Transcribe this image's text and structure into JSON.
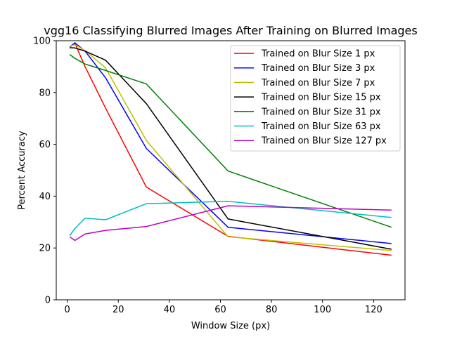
{
  "chart_data": {
    "type": "line",
    "title": "vgg16 Classifying Blurred Images After Training on Blurred Images",
    "xlabel": "Window Size (px)",
    "ylabel": "Percent Accuracy",
    "xlim": [
      -4.3,
      132.3
    ],
    "ylim": [
      0,
      100
    ],
    "xticks": [
      0,
      20,
      40,
      60,
      80,
      100,
      120
    ],
    "yticks": [
      0,
      20,
      40,
      60,
      80,
      100
    ],
    "grid": false,
    "legend_position": "upper right",
    "x": [
      1,
      3,
      7,
      15,
      31,
      63,
      127
    ],
    "series": [
      {
        "name": "Trained on Blur Size 1 px",
        "color": "#ff0000",
        "values": [
          97.5,
          99.0,
          90.0,
          74.0,
          43.5,
          24.5,
          17.2
        ]
      },
      {
        "name": "Trained on Blur Size 3 px",
        "color": "#0000ff",
        "values": [
          97.6,
          99.2,
          96.0,
          85.7,
          58.4,
          28.0,
          21.7
        ]
      },
      {
        "name": "Trained on Blur Size 7 px",
        "color": "#bfbf00",
        "values": [
          97.8,
          98.5,
          96.2,
          89.5,
          61.5,
          24.3,
          19.0
        ]
      },
      {
        "name": "Trained on Blur Size 15 px",
        "color": "#000000",
        "values": [
          97.3,
          97.2,
          96.0,
          92.5,
          75.7,
          31.2,
          19.5
        ]
      },
      {
        "name": "Trained on Blur Size 31 px",
        "color": "#008000",
        "values": [
          94.7,
          93.2,
          91.0,
          88.5,
          83.3,
          49.7,
          28.0
        ]
      },
      {
        "name": "Trained on Blur Size 63 px",
        "color": "#00bfbf",
        "values": [
          24.8,
          27.5,
          31.5,
          30.9,
          37.1,
          38.0,
          31.8
        ]
      },
      {
        "name": "Trained on Blur Size 127 px",
        "color": "#bf00bf",
        "values": [
          24.3,
          22.9,
          25.4,
          26.8,
          28.3,
          36.3,
          34.6
        ]
      }
    ]
  }
}
